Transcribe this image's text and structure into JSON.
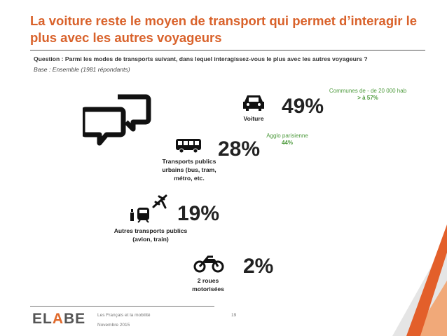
{
  "title": "La voiture reste le moyen de transport qui permet d’interagir le plus avec les autres voyageurs",
  "question": "Question : Parmi les modes de transports suivant, dans lequel interagissez-vous le plus avec les autres voyageurs ?",
  "base": "Base : Ensemble (1981 répondants)",
  "chart_data": {
    "type": "table",
    "categories": [
      "Voiture",
      "Transports publics urbains (bus, tram, métro, etc.",
      "Autres transports publics (avion, train)",
      "2 roues motorisées"
    ],
    "values": [
      49,
      28,
      19,
      2
    ],
    "value_labels": [
      "49%",
      "28%",
      "19%",
      "2%"
    ],
    "annotations": [
      {
        "line1": "Communes de - de 20 000 hab",
        "line2": "> à 57%"
      },
      {
        "line1": "Agglo parisienne",
        "line2": "44%"
      }
    ]
  },
  "items": [
    {
      "label_lines": [
        "Voiture"
      ],
      "value": "49%",
      "icon": "car-icon"
    },
    {
      "label_lines": [
        "Transports publics",
        "urbains (bus, tram,",
        "métro, etc."
      ],
      "value": "28%",
      "icon": "bus-icon"
    },
    {
      "label_lines": [
        "Autres transports publics",
        "(avion, train)"
      ],
      "value": "19%",
      "icon": "plane-train-icon"
    },
    {
      "label_lines": [
        "2 roues",
        "motorisées"
      ],
      "value": "2%",
      "icon": "motorcycle-icon"
    }
  ],
  "footer": {
    "brand_prefix": "EL",
    "brand_accent": "A",
    "brand_suffix": "BE",
    "study": "Les Français et la mobilité",
    "date": "Novembre 2015",
    "page": "19"
  },
  "colors": {
    "title": "#d9622b",
    "note": "#4d9a3c",
    "accent": "#e06a2c"
  }
}
